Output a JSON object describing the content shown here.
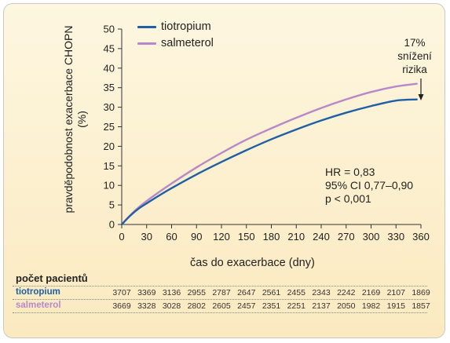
{
  "chart_data": {
    "type": "line",
    "xlabel": "čas do exacerbace (dny)",
    "ylabel": "pravděpodobnost exacerbace CHOPN (%)",
    "xlim": [
      0,
      360
    ],
    "ylim": [
      0,
      50
    ],
    "xticks": [
      0,
      30,
      60,
      90,
      120,
      150,
      180,
      210,
      240,
      270,
      300,
      330,
      360
    ],
    "yticks": [
      0,
      5,
      10,
      15,
      20,
      25,
      30,
      35,
      40,
      45,
      50
    ],
    "legend_position": "top-left",
    "grid": false,
    "series": [
      {
        "name": "tiotropium",
        "color": "#1f5fa6",
        "x": [
          0,
          10,
          20,
          30,
          45,
          60,
          90,
          120,
          150,
          180,
          210,
          240,
          270,
          300,
          330,
          355
        ],
        "y": [
          0,
          2.2,
          4.0,
          5.4,
          7.4,
          9.3,
          12.8,
          16.0,
          19.0,
          21.8,
          24.3,
          26.6,
          28.6,
          30.3,
          31.7,
          32.0
        ]
      },
      {
        "name": "salmeterol",
        "color": "#b888c8",
        "x": [
          0,
          10,
          20,
          30,
          45,
          60,
          90,
          120,
          150,
          180,
          210,
          240,
          270,
          300,
          330,
          355
        ],
        "y": [
          0,
          2.3,
          4.3,
          6.0,
          8.3,
          10.5,
          14.6,
          18.3,
          21.7,
          24.6,
          27.3,
          29.8,
          32.0,
          33.9,
          35.3,
          36.0
        ]
      }
    ],
    "annotation": {
      "lines": [
        "17%",
        "snížení",
        "rizika"
      ]
    },
    "stats": [
      "HR = 0,83",
      "95% CI 0,77–0,90",
      "p < 0,001"
    ]
  },
  "patients": {
    "title": "počet pacientů",
    "rows": [
      {
        "name": "tiotropium",
        "color": "#1f5fa6",
        "values": [
          "3707",
          "3369",
          "3136",
          "2955",
          "2787",
          "2647",
          "2561",
          "2455",
          "2343",
          "2242",
          "2169",
          "2107",
          "1869"
        ]
      },
      {
        "name": "salmeterol",
        "color": "#b888c8",
        "values": [
          "3669",
          "3328",
          "3028",
          "2802",
          "2605",
          "2457",
          "2351",
          "2251",
          "2137",
          "2050",
          "1982",
          "1915",
          "1857"
        ]
      }
    ]
  }
}
